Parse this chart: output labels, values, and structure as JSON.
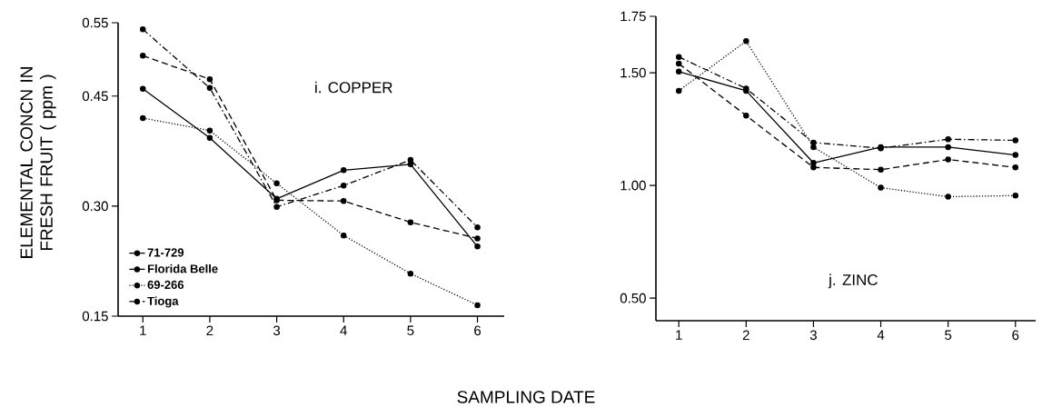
{
  "chart_data": [
    {
      "type": "line",
      "title": "i.  COPPER",
      "ylabel": "ELEMENTAL CONCN IN FRESH FRUIT ( ppm )",
      "xlabel": "SAMPLING DATE",
      "categories": [
        "1",
        "2",
        "3",
        "4",
        "5",
        "6"
      ],
      "ylim": [
        0.15,
        0.55
      ],
      "yticks": [
        {
          "value": 0.15,
          "label": "0.15"
        },
        {
          "value": 0.3,
          "label": "0.30"
        },
        {
          "value": 0.45,
          "label": "0.45"
        },
        {
          "value": 0.55,
          "label": "0.55"
        }
      ],
      "legend": "bottom left",
      "marker": "circle",
      "series": [
        {
          "name": "71-729",
          "color": "#000000",
          "line_style": "solid",
          "values": [
            0.46,
            0.393,
            0.31,
            0.349,
            0.357,
            0.245
          ]
        },
        {
          "name": "Florida Belle",
          "color": "#000000",
          "line_style": "dashed",
          "values": [
            0.505,
            0.473,
            0.308,
            0.307,
            0.278,
            0.256
          ]
        },
        {
          "name": "69-266",
          "color": "#000000",
          "line_style": "dotted",
          "values": [
            0.42,
            0.403,
            0.331,
            0.26,
            0.208,
            0.165
          ]
        },
        {
          "name": "Tioga",
          "color": "#000000",
          "line_style": "dashdot",
          "values": [
            0.541,
            0.461,
            0.299,
            0.328,
            0.363,
            0.271
          ]
        }
      ]
    },
    {
      "type": "line",
      "title": "j.  ZINC",
      "categories": [
        "1",
        "2",
        "3",
        "4",
        "5",
        "6"
      ],
      "ylim": [
        0.4,
        1.75
      ],
      "yticks": [
        {
          "value": 0.5,
          "label": "0.50"
        },
        {
          "value": 1.0,
          "label": "1.00"
        },
        {
          "value": 1.5,
          "label": "1.50"
        },
        {
          "value": 1.75,
          "label": "1.75"
        }
      ],
      "marker": "circle",
      "series": [
        {
          "color": "#000000",
          "line_style": "solid",
          "values": [
            1.505,
            1.42,
            1.1,
            1.17,
            1.17,
            1.135
          ]
        },
        {
          "color": "#000000",
          "line_style": "dashed",
          "values": [
            1.54,
            1.31,
            1.08,
            1.07,
            1.115,
            1.08
          ]
        },
        {
          "color": "#000000",
          "line_style": "dotted",
          "values": [
            1.42,
            1.64,
            1.17,
            0.99,
            0.95,
            0.955
          ]
        },
        {
          "color": "#000000",
          "line_style": "dashdot",
          "values": [
            1.57,
            1.43,
            1.19,
            1.165,
            1.205,
            1.2
          ]
        }
      ]
    }
  ]
}
